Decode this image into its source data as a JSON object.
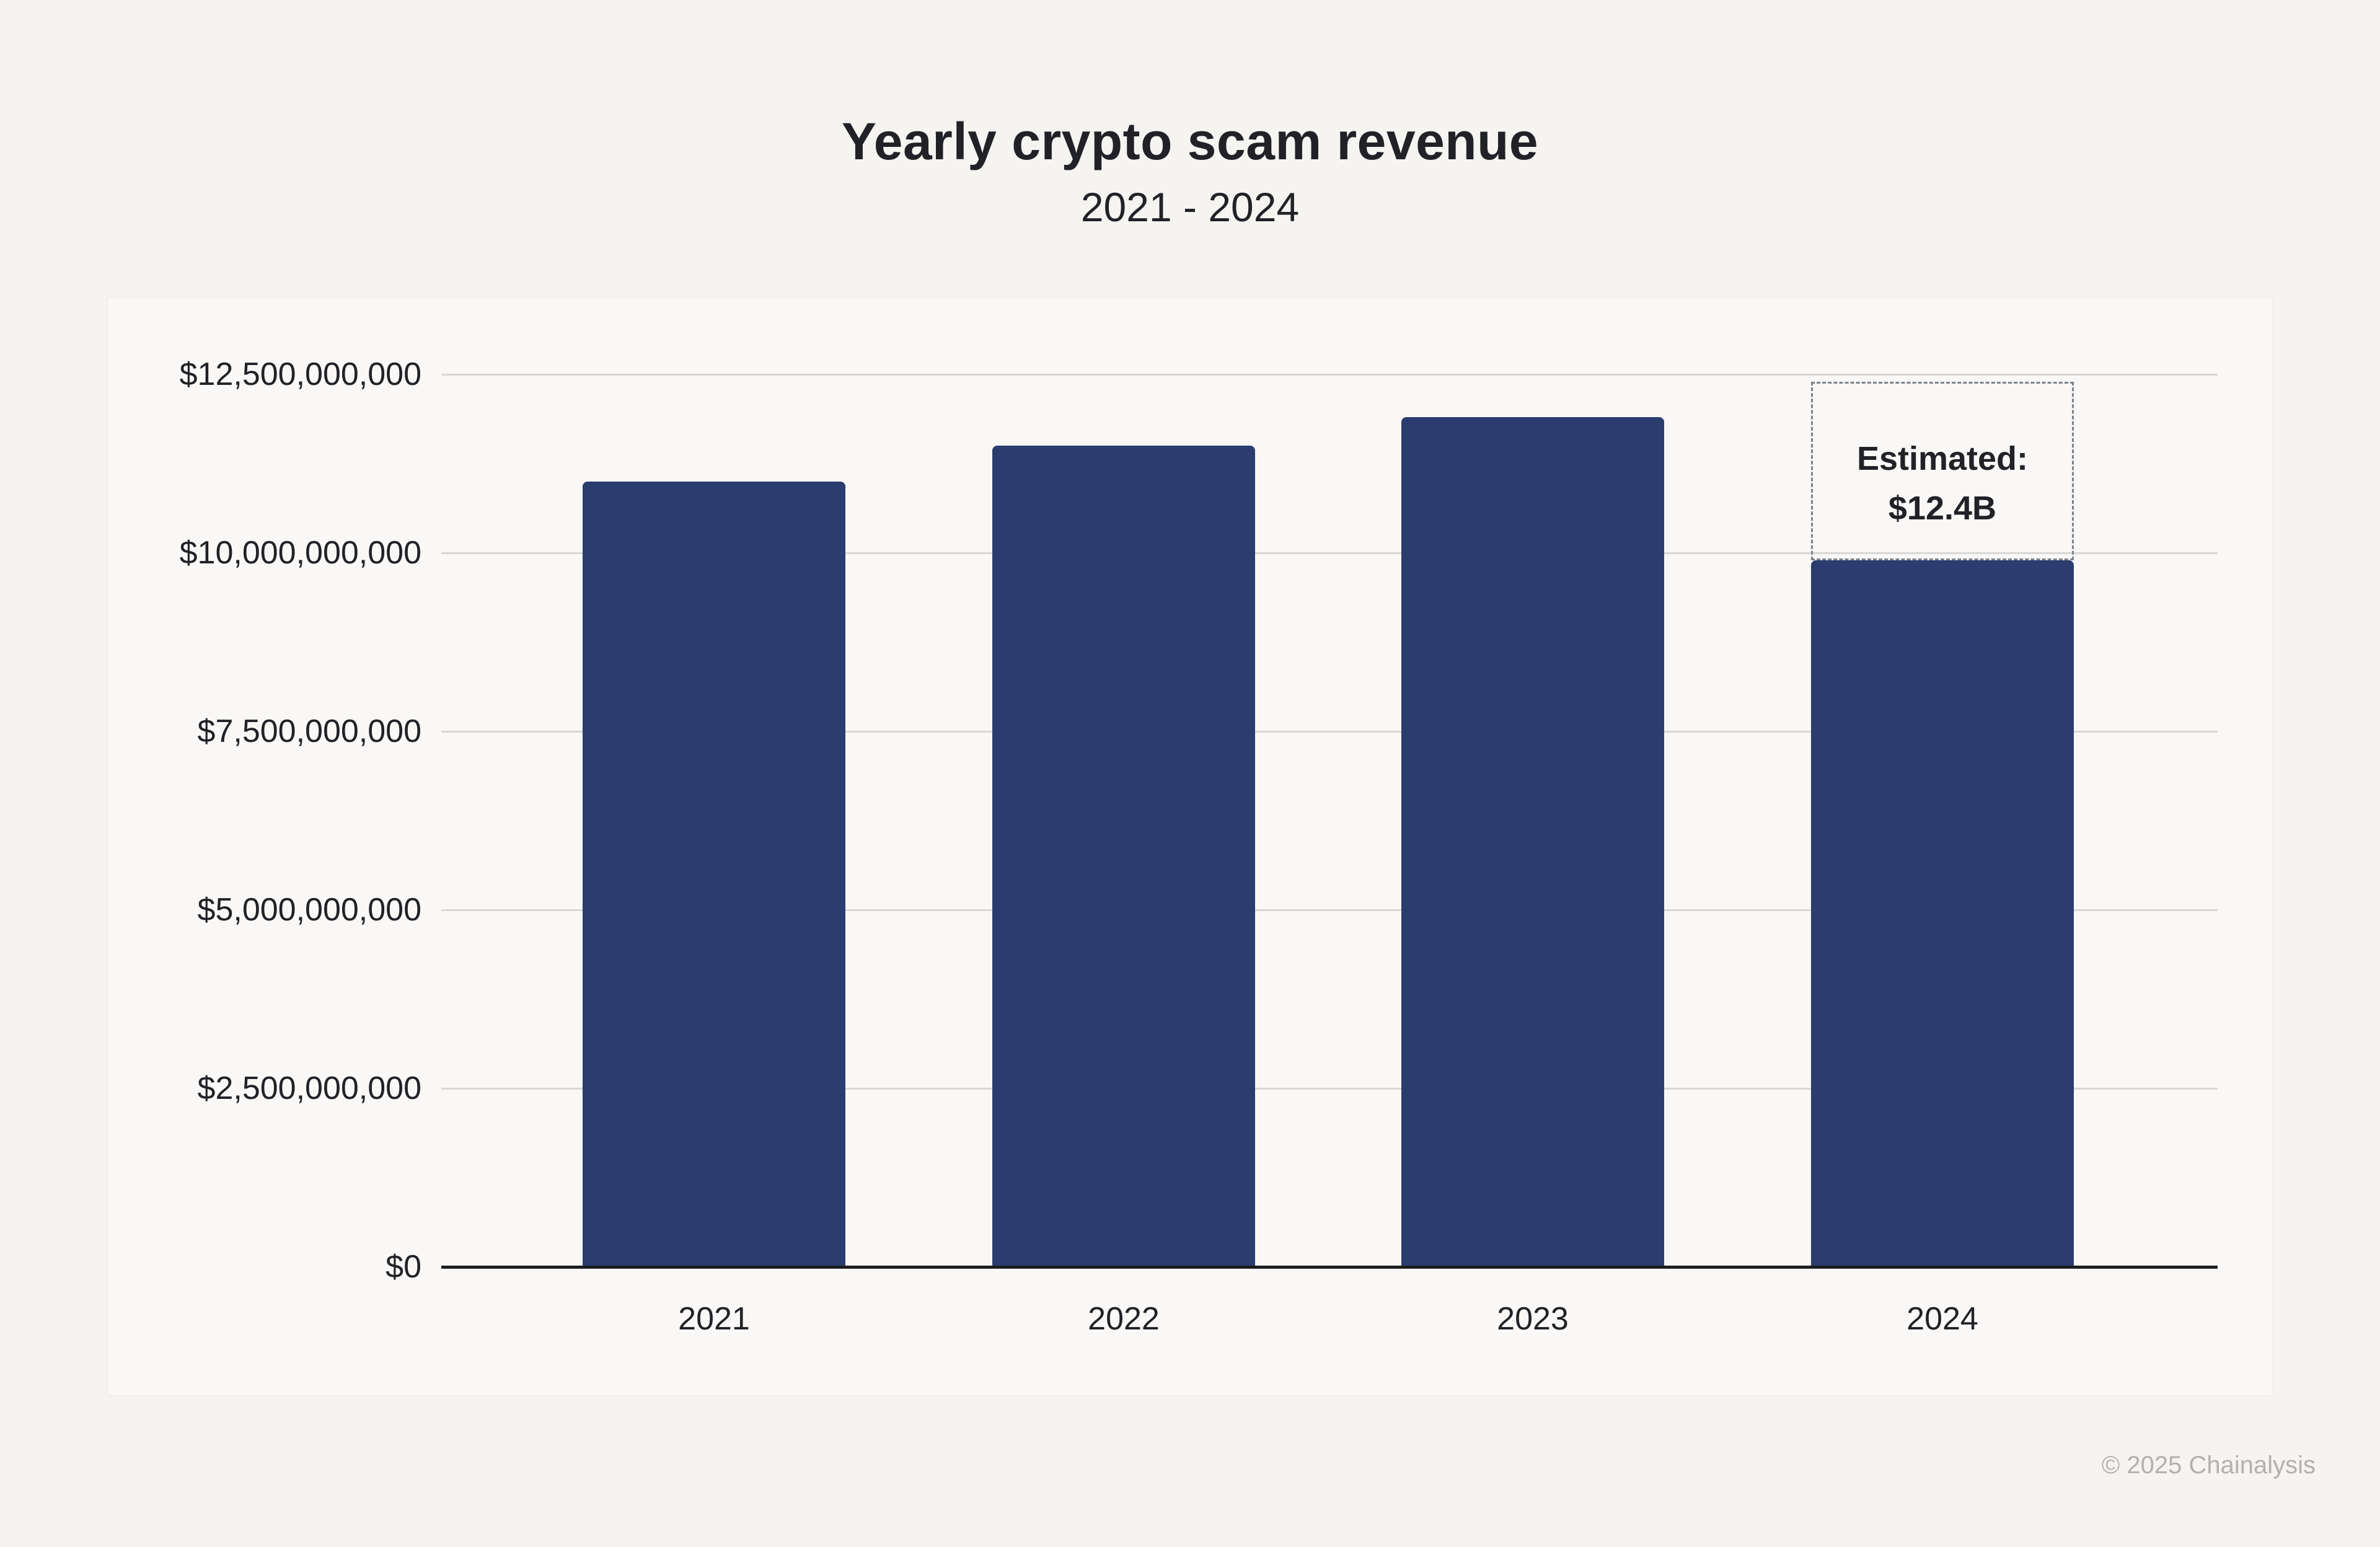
{
  "page": {
    "title": "Yearly crypto scam revenue",
    "subtitle": "2021 - 2024",
    "copyright": "© 2025 Chainalysis"
  },
  "colors": {
    "page_background": "#F5F4F1",
    "panel_background": "#F9F8F6",
    "bar": "#2B3C6F",
    "gridline": "#D8D7D5",
    "axis_line": "#1C1D21",
    "text": "#212227",
    "muted_text": "#B3B1AE",
    "annotation_border": "#7D838C",
    "annotation_text": "#212227"
  },
  "chart_data": {
    "type": "bar",
    "title": "Yearly crypto scam revenue",
    "subtitle": "2021 - 2024",
    "unit": "USD",
    "categories": [
      "2021",
      "2022",
      "2023",
      "2024"
    ],
    "values": [
      11000000000,
      11500000000,
      11900000000,
      9900000000
    ],
    "series": [
      {
        "name": "Yearly crypto scam revenue",
        "values_usd": [
          11000000000,
          11500000000,
          11900000000,
          9900000000
        ]
      }
    ],
    "annotation": {
      "target_category": "2024",
      "label_line1": "Estimated:",
      "label_line2": "$12.4B",
      "estimated_value_usd": 12400000000,
      "style": "dashed-box-above-bar"
    },
    "y_axis": {
      "min": 0,
      "max": 12500000000,
      "ticks": [
        {
          "value": 0,
          "label": "$0"
        },
        {
          "value": 2500000000,
          "label": "$2,500,000,000"
        },
        {
          "value": 5000000000,
          "label": "$5,000,000,000"
        },
        {
          "value": 7500000000,
          "label": "$7,500,000,000"
        },
        {
          "value": 10000000000,
          "label": "$10,000,000,000"
        },
        {
          "value": 12500000000,
          "label": "$12,500,000,000"
        }
      ]
    },
    "x_axis": {
      "ticks": [
        "2021",
        "2022",
        "2023",
        "2024"
      ]
    },
    "grid": "horizontal",
    "legend": "none"
  }
}
